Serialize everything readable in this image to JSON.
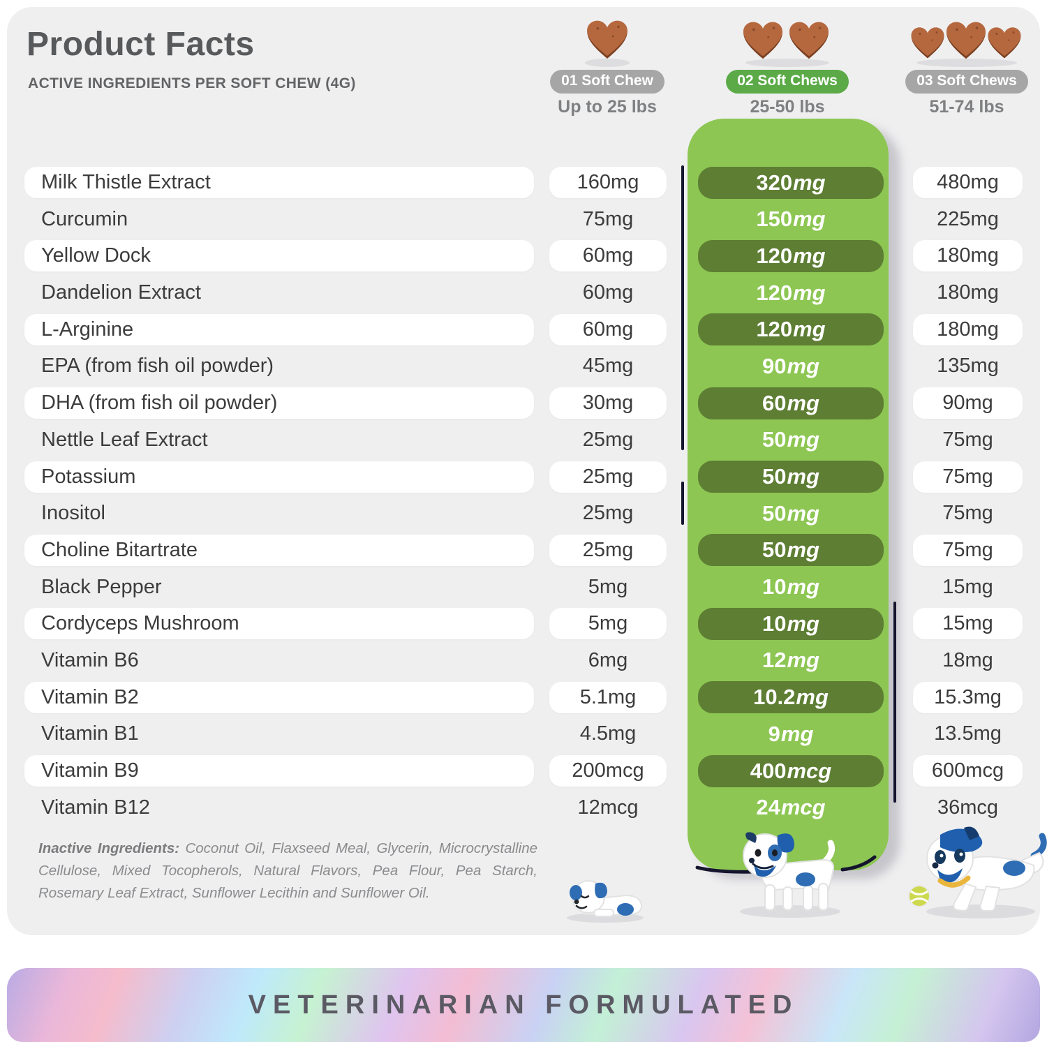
{
  "header": {
    "title": "Product Facts",
    "subtitle": "ACTIVE INGREDIENTS PER SOFT CHEW (4G)",
    "columns": [
      {
        "badge": "01 Soft Chew",
        "weight": "Up to 25 lbs",
        "chew_count": 1,
        "badge_color": "#a6a6a6",
        "icon": "heart-chew-icon"
      },
      {
        "badge": "02 Soft Chews",
        "weight": "25-50 lbs",
        "chew_count": 2,
        "badge_color": "#5baa47",
        "icon": "heart-chew-icon"
      },
      {
        "badge": "03 Soft Chews",
        "weight": "51-74 lbs",
        "chew_count": 3,
        "badge_color": "#a6a6a6",
        "icon": "heart-chew-icon"
      }
    ]
  },
  "table": {
    "rows": [
      {
        "name": "Milk Thistle Extract",
        "dose1": "160mg",
        "dose2": "320mg",
        "dose3": "480mg"
      },
      {
        "name": "Curcumin",
        "dose1": "75mg",
        "dose2": "150mg",
        "dose3": "225mg"
      },
      {
        "name": "Yellow Dock",
        "dose1": "60mg",
        "dose2": "120mg",
        "dose3": "180mg"
      },
      {
        "name": "Dandelion Extract",
        "dose1": "60mg",
        "dose2": "120mg",
        "dose3": "180mg"
      },
      {
        "name": "L-Arginine",
        "dose1": "60mg",
        "dose2": "120mg",
        "dose3": "180mg"
      },
      {
        "name": "EPA (from fish oil powder)",
        "dose1": "45mg",
        "dose2": "90mg",
        "dose3": "135mg"
      },
      {
        "name": "DHA (from fish oil powder)",
        "dose1": "30mg",
        "dose2": "60mg",
        "dose3": "90mg"
      },
      {
        "name": "Nettle Leaf Extract",
        "dose1": "25mg",
        "dose2": "50mg",
        "dose3": "75mg"
      },
      {
        "name": "Potassium",
        "dose1": "25mg",
        "dose2": "50mg",
        "dose3": "75mg"
      },
      {
        "name": "Inositol",
        "dose1": "25mg",
        "dose2": "50mg",
        "dose3": "75mg"
      },
      {
        "name": "Choline Bitartrate",
        "dose1": "25mg",
        "dose2": "50mg",
        "dose3": "75mg"
      },
      {
        "name": "Black Pepper",
        "dose1": "5mg",
        "dose2": "10mg",
        "dose3": "15mg"
      },
      {
        "name": "Cordyceps Mushroom",
        "dose1": "5mg",
        "dose2": "10mg",
        "dose3": "15mg"
      },
      {
        "name": "Vitamin B6",
        "dose1": "6mg",
        "dose2": "12mg",
        "dose3": "18mg"
      },
      {
        "name": "Vitamin B2",
        "dose1": "5.1mg",
        "dose2": "10.2mg",
        "dose3": "15.3mg"
      },
      {
        "name": "Vitamin B1",
        "dose1": "4.5mg",
        "dose2": "9mg",
        "dose3": "13.5mg"
      },
      {
        "name": "Vitamin B9",
        "dose1": "200mcg",
        "dose2": "400mcg",
        "dose3": "600mcg"
      },
      {
        "name": "Vitamin B12",
        "dose1": "12mcg",
        "dose2": "24mcg",
        "dose3": "36mcg"
      }
    ]
  },
  "inactive": {
    "label": "Inactive Ingredients:",
    "text": " Coconut Oil, Flaxseed Meal, Glycerin, Microcrystalline Cellulose, Mixed Tocopherols, Natural Flavors, Pea Flour, Pea Starch, Rosemary Leaf Extract, Sunflower Lecithin and Sunflower Oil."
  },
  "banner": {
    "text": "VETERINARIAN FORMULATED"
  },
  "icons": {
    "chew": "heart-chew-icon",
    "dogs": [
      "puppy-small-illustration",
      "dog-medium-illustration",
      "dog-large-illustration"
    ]
  },
  "colors": {
    "card_bg": "#efeff0",
    "panel_green": "#8dc653",
    "dose_pill_green": "#5d7e33",
    "badge_green": "#5baa47",
    "badge_gray": "#a6a6a6",
    "chew_brown": "#b5683e",
    "text_dark": "#3c3c3c",
    "sketch_line": "#15152e"
  }
}
